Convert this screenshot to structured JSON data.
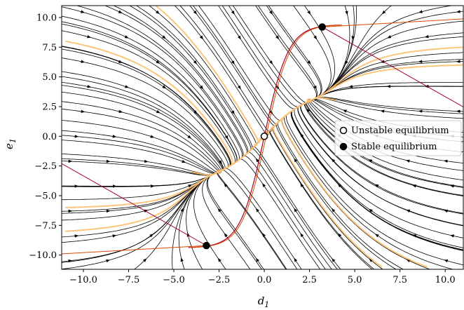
{
  "chart_data": {
    "type": "streamplot",
    "xlabel": "d1",
    "ylabel": "e1",
    "xlim": [
      -11.2,
      11
    ],
    "ylim": [
      -11.2,
      11
    ],
    "xticks": [
      -10,
      -7.5,
      -5,
      -2.5,
      0,
      2.5,
      5,
      7.5,
      10
    ],
    "yticks": [
      -10,
      -7.5,
      -5,
      -2.5,
      0,
      2.5,
      5,
      7.5,
      10
    ],
    "xtick_labels": [
      "−10.0",
      "−7.5",
      "−5.0",
      "−2.5",
      "0.0",
      "2.5",
      "5.0",
      "7.5",
      "10.0"
    ],
    "ytick_labels": [
      "−10.0",
      "−7.5",
      "−5.0",
      "−2.5",
      "0.0",
      "2.5",
      "5.0",
      "7.5",
      "10.0"
    ],
    "grid": false,
    "legend_placement": "center-right",
    "legend": [
      {
        "label": "Unstable equilibrium",
        "marker": "open-circle"
      },
      {
        "label": "Stable equilibrium",
        "marker": "filled-circle"
      }
    ],
    "equilibria": [
      {
        "type": "unstable",
        "x": 0.0,
        "y": 0.0
      },
      {
        "type": "stable",
        "x": 3.2,
        "y": 9.2
      },
      {
        "type": "stable",
        "x": -3.2,
        "y": -9.2
      }
    ],
    "colors": {
      "streamlines": "#000000",
      "highlighted_trajectories": "#fdbf6f",
      "nullclines": "#a50026",
      "highlight_lines": "#d94801",
      "marker_edge": "#000000"
    }
  }
}
